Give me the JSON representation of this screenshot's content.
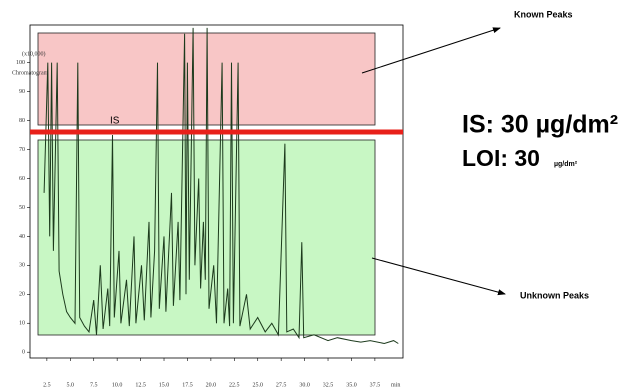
{
  "chart_data": {
    "type": "line",
    "y_title": "(x10,000)",
    "subtitle": "Chromatogram",
    "x_unit": "min",
    "x": [
      2.2,
      2.6,
      2.8,
      3.0,
      3.2,
      3.6,
      3.8,
      4.2,
      4.6,
      5.0,
      5.5,
      5.8,
      6.0,
      6.5,
      7.0,
      7.5,
      7.8,
      8.2,
      8.5,
      9.0,
      9.2,
      9.5,
      9.7,
      10.2,
      10.4,
      11.0,
      11.3,
      11.8,
      12.0,
      12.6,
      12.9,
      13.4,
      13.6,
      14.0,
      14.3,
      14.5,
      15.0,
      15.2,
      15.8,
      16.0,
      16.5,
      16.7,
      17.2,
      17.35,
      17.5,
      17.7,
      18.1,
      18.3,
      18.7,
      18.9,
      19.2,
      19.4,
      19.6,
      19.8,
      20.3,
      20.6,
      21.2,
      21.4,
      21.8,
      22.0,
      22.2,
      22.4,
      22.9,
      23.1,
      23.8,
      24.2,
      25.0,
      25.8,
      26.5,
      27.2,
      27.9,
      28.1,
      28.8,
      29.4,
      29.7,
      29.9,
      31.0,
      32.5,
      33.5,
      35.0,
      36.0,
      37.0,
      38.5,
      39.5,
      40.0
    ],
    "series": [
      {
        "color": "#1c3a1c",
        "values": [
          55,
          100,
          40,
          100,
          35,
          100,
          28,
          20,
          14,
          12,
          10,
          100,
          12,
          9,
          7,
          18,
          6,
          30,
          8,
          22,
          9,
          75,
          12,
          35,
          10,
          25,
          9,
          40,
          10,
          30,
          11,
          45,
          12,
          35,
          100,
          15,
          40,
          14,
          55,
          16,
          45,
          18,
          110,
          20,
          100,
          25,
          112,
          30,
          60,
          22,
          45,
          25,
          112,
          15,
          30,
          10,
          100,
          10,
          22,
          9,
          100,
          10,
          100,
          9,
          20,
          8,
          12,
          7,
          10,
          6,
          72,
          7,
          8,
          5,
          38,
          5,
          6,
          4,
          5,
          4,
          3.5,
          4,
          3,
          4,
          3
        ]
      }
    ],
    "xlim": [
      0.7,
      40.5
    ],
    "ylim": [
      -2,
      113
    ],
    "xticks": [
      2.5,
      {
        "value": 5,
        "label": "5.0"
      },
      7.5,
      {
        "value": 10,
        "label": "10.0"
      },
      12.5,
      {
        "value": 15,
        "label": "15.0"
      },
      17.5,
      {
        "value": 20,
        "label": "20.0"
      },
      22.5,
      {
        "value": 25,
        "label": "25.0"
      },
      27.5,
      {
        "value": 30,
        "label": "30.0"
      },
      32.5,
      {
        "value": 35,
        "label": "35.0"
      },
      37.5
    ],
    "yticks": [
      0,
      10,
      20,
      30,
      40,
      50,
      60,
      70,
      80,
      90,
      100
    ],
    "annotations": {
      "known": "Known Peaks",
      "unknown": "Unknown Peaks",
      "is_marker": "IS",
      "is_text": "IS: 30 µg/dm²",
      "loi_text": "LOI: 30",
      "loi_unit": "µg/dm²"
    }
  }
}
